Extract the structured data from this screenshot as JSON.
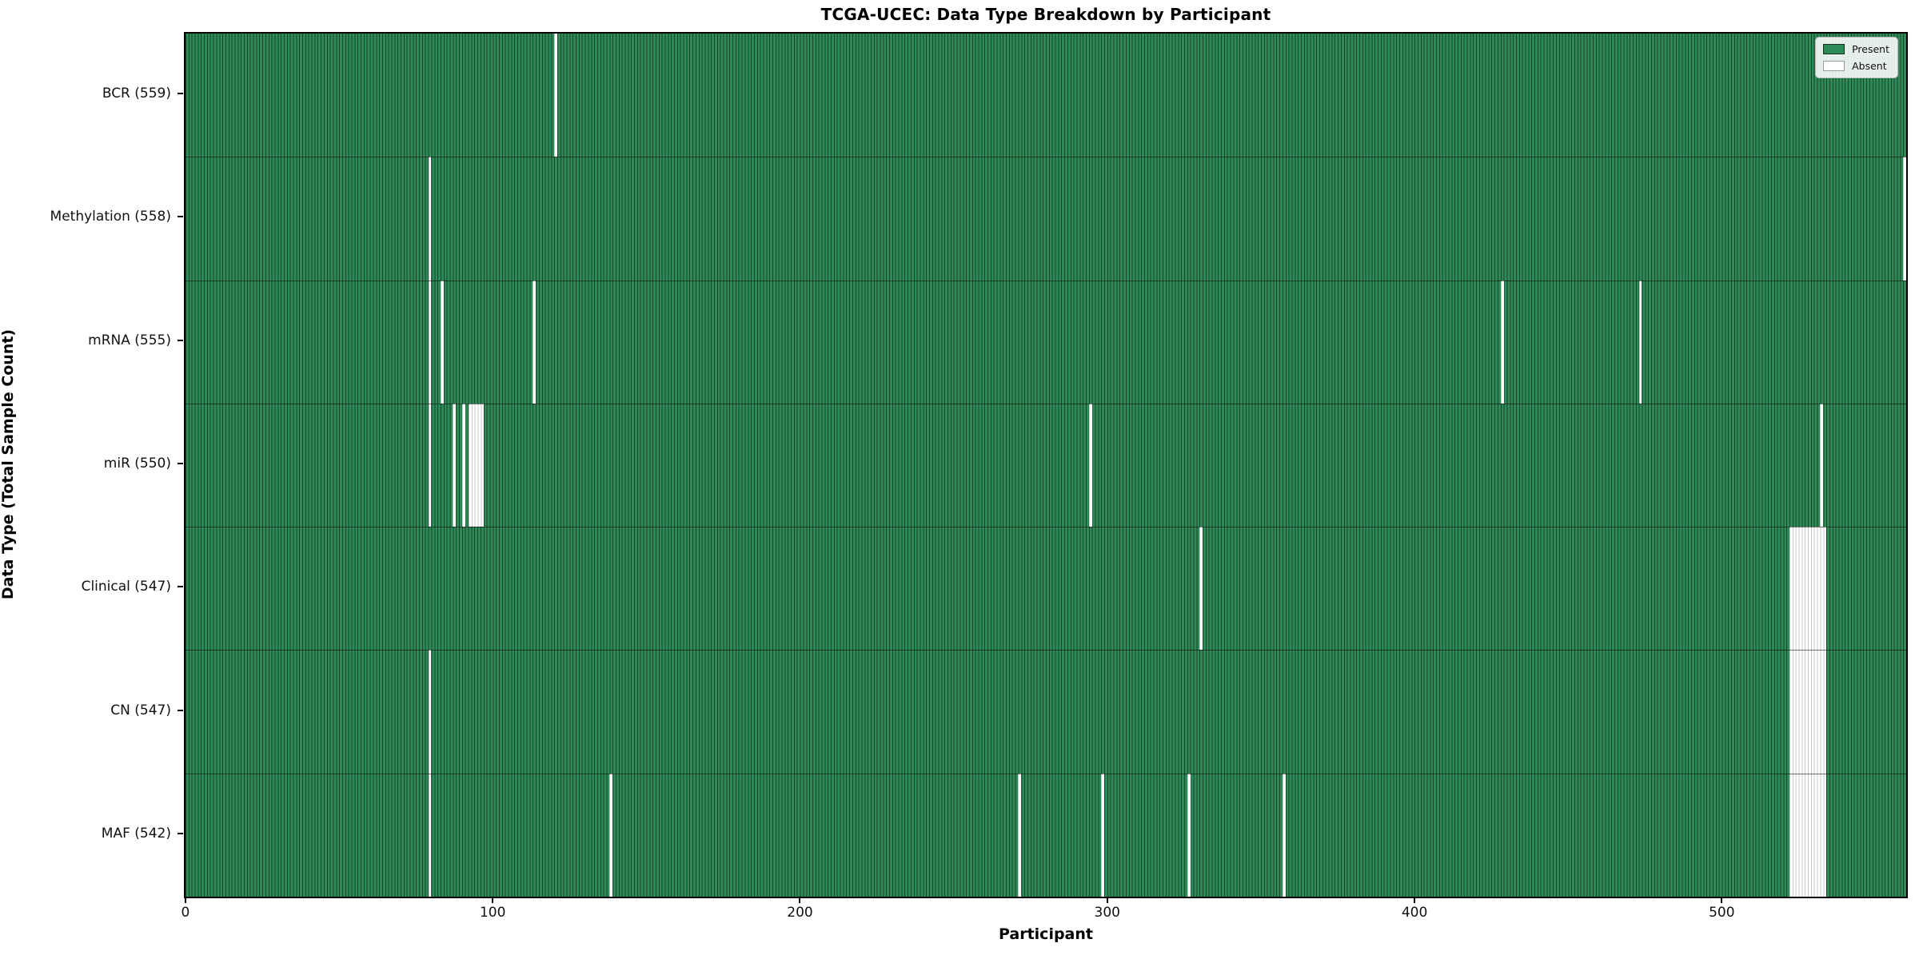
{
  "title": "TCGA-UCEC: Data Type Breakdown by Participant",
  "axes": {
    "xlabel": "Participant",
    "ylabel": "Data Type (Total Sample Count)"
  },
  "legend": {
    "position": "upper right",
    "entries": [
      {
        "label": "Present",
        "color": "#2e8b57"
      },
      {
        "label": "Absent",
        "color": "#ffffff"
      }
    ]
  },
  "colors": {
    "present_fill": "#2e8b57",
    "bar_edge": "#16452c",
    "absent_fill": "#ffffff",
    "absent_edge": "#c9c9c9",
    "spine": "#000000"
  },
  "chart_data": {
    "type": "heatmap",
    "title": "TCGA-UCEC: Data Type Breakdown by Participant",
    "xlabel": "Participant",
    "ylabel": "Data Type (Total Sample Count)",
    "legend_present": "Present",
    "legend_absent": "Absent",
    "total_participants": 560,
    "xlim": [
      -0.5,
      559.5
    ],
    "x_ticks": [
      0,
      100,
      200,
      300,
      400,
      500
    ],
    "grid": false,
    "rows": [
      {
        "label": "BCR (559)",
        "data_type": "BCR",
        "present_count": 559,
        "absent_runs": [
          [
            120,
            1
          ]
        ]
      },
      {
        "label": "Methylation (558)",
        "data_type": "Methylation",
        "present_count": 558,
        "absent_runs": [
          [
            79,
            1
          ],
          [
            559,
            1
          ]
        ]
      },
      {
        "label": "mRNA (555)",
        "data_type": "mRNA",
        "present_count": 555,
        "absent_runs": [
          [
            79,
            1
          ],
          [
            83,
            1
          ],
          [
            113,
            1
          ],
          [
            428,
            1
          ],
          [
            473,
            1
          ]
        ]
      },
      {
        "label": "miR (550)",
        "data_type": "miR",
        "present_count": 550,
        "absent_runs": [
          [
            79,
            1
          ],
          [
            87,
            1
          ],
          [
            90,
            1
          ],
          [
            92,
            5
          ],
          [
            294,
            1
          ],
          [
            532,
            1
          ]
        ]
      },
      {
        "label": "Clinical (547)",
        "data_type": "Clinical",
        "present_count": 547,
        "absent_runs": [
          [
            330,
            1
          ],
          [
            522,
            12
          ]
        ]
      },
      {
        "label": "CN (547)",
        "data_type": "CN",
        "present_count": 547,
        "absent_runs": [
          [
            79,
            1
          ],
          [
            522,
            12
          ]
        ]
      },
      {
        "label": "MAF (542)",
        "data_type": "MAF",
        "present_count": 542,
        "absent_runs": [
          [
            79,
            1
          ],
          [
            138,
            1
          ],
          [
            271,
            1
          ],
          [
            298,
            1
          ],
          [
            326,
            1
          ],
          [
            357,
            1
          ],
          [
            522,
            12
          ]
        ]
      }
    ]
  }
}
